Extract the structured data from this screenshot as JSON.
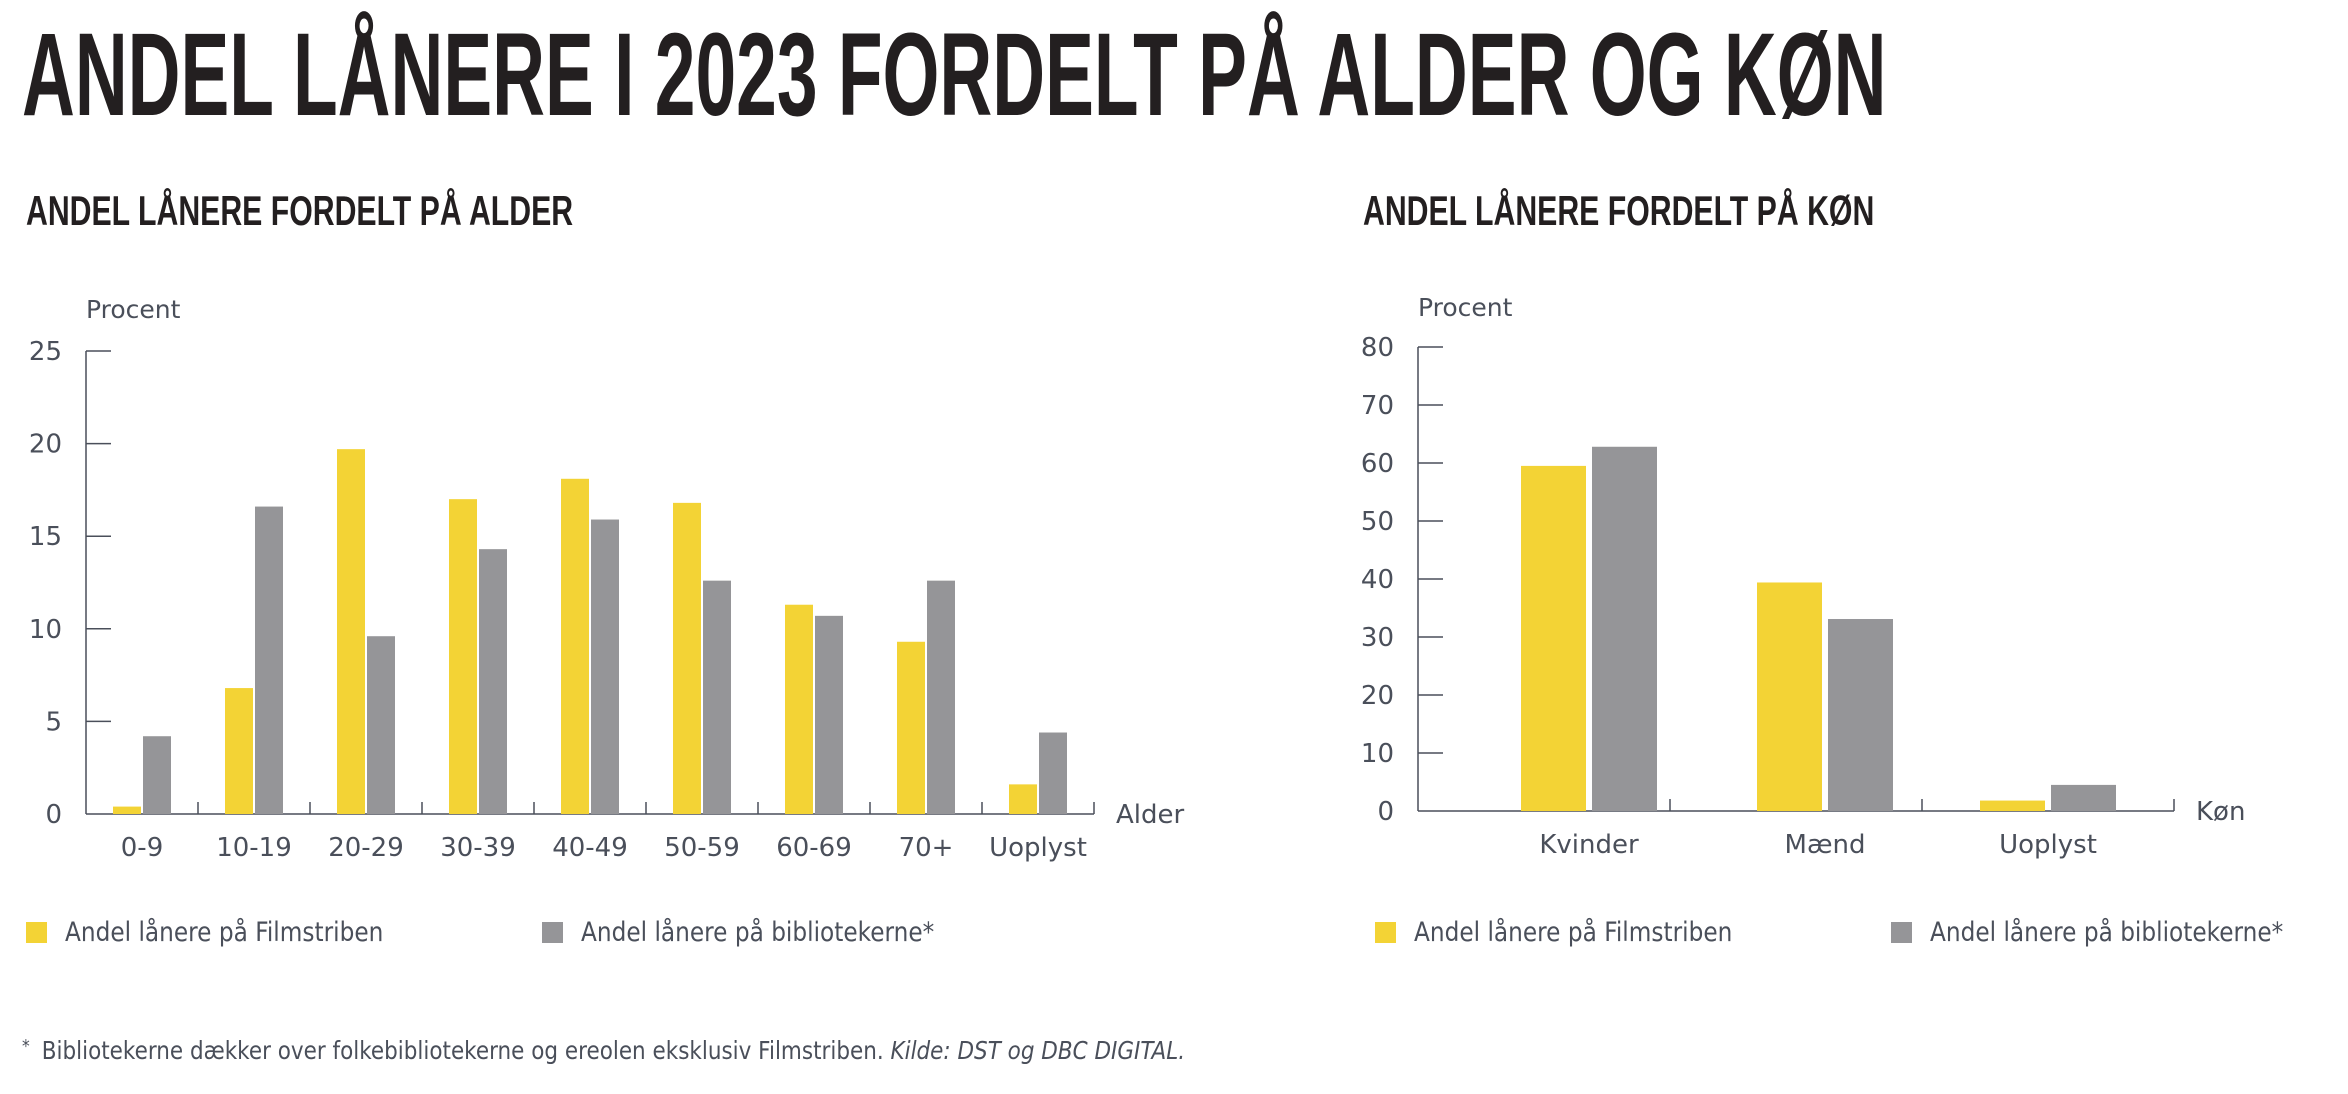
{
  "title": "ANDEL LÅNERE I 2023 FORDELT PÅ ALDER OG KØN",
  "colors": {
    "filmstriben": "#F3D335",
    "bibliotekerne": "#959598",
    "axis": "#4a4f5a",
    "title": "#231f20"
  },
  "legend": {
    "filmstriben": "Andel lånere på Filmstriben",
    "bibliotekerne": "Andel lånere på bibliotekerne*"
  },
  "footnote": {
    "marker": "*",
    "text": "Bibliotekerne dækker over folkebibliotekerne og ereolen eksklusiv Filmstriben.",
    "source": "Kilde: DST og DBC DIGITAL."
  },
  "chart_data": [
    {
      "type": "bar",
      "title": "ANDEL LÅNERE FORDELT PÅ ALDER",
      "xlabel": "Alder",
      "ylabel": "Procent",
      "ylim": [
        0,
        25
      ],
      "yticks": [
        0,
        5,
        10,
        15,
        20,
        25
      ],
      "grid": false,
      "legend_position": "bottom",
      "categories": [
        "0-9",
        "10-19",
        "20-29",
        "30-39",
        "40-49",
        "50-59",
        "60-69",
        "70+",
        "Uoplyst"
      ],
      "series": [
        {
          "name": "Andel lånere på Filmstriben",
          "color": "#F3D335",
          "values": [
            0.4,
            6.8,
            19.7,
            17.0,
            18.1,
            16.8,
            11.3,
            9.3,
            1.6
          ]
        },
        {
          "name": "Andel lånere på bibliotekerne*",
          "color": "#959598",
          "values": [
            4.2,
            16.6,
            9.6,
            14.3,
            15.9,
            12.6,
            10.7,
            12.6,
            4.4
          ]
        }
      ]
    },
    {
      "type": "bar",
      "title": "ANDEL LÅNERE FORDELT PÅ KØN",
      "xlabel": "Køn",
      "ylabel": "Procent",
      "ylim": [
        0,
        80
      ],
      "yticks": [
        0,
        10,
        20,
        30,
        40,
        50,
        60,
        70,
        80
      ],
      "grid": false,
      "legend_position": "bottom",
      "categories": [
        "Kvinder",
        "Mænd",
        "Uoplyst"
      ],
      "series": [
        {
          "name": "Andel lånere på Filmstriben",
          "color": "#F3D335",
          "values": [
            59.5,
            39.4,
            1.8
          ]
        },
        {
          "name": "Andel lånere på bibliotekerne*",
          "color": "#959598",
          "values": [
            62.8,
            33.1,
            4.5
          ]
        }
      ]
    }
  ]
}
